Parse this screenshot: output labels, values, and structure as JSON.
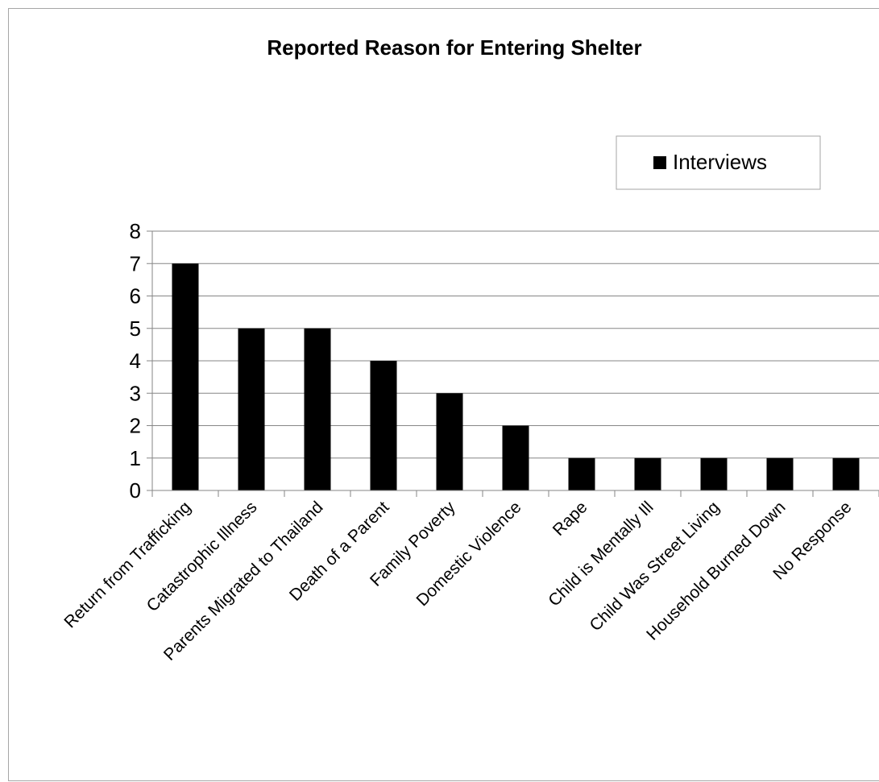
{
  "chart_data": {
    "type": "bar",
    "title": "Reported Reason for Entering Shelter",
    "xlabel": "",
    "ylabel": "",
    "categories": [
      "Return from Trafficking",
      "Catastrophic Illness",
      "Parents Migrated to Thailand",
      "Death of a Parent",
      "Family Poverty",
      "Domestic Violence",
      "Rape",
      "Child is Mentally Ill",
      "Child Was Street Living",
      "Household Burned Down",
      "No Response"
    ],
    "series": [
      {
        "name": "Interviews",
        "values": [
          7,
          5,
          5,
          4,
          3,
          2,
          1,
          1,
          1,
          1,
          1
        ],
        "color": "#000000"
      }
    ],
    "ylim": [
      0,
      8
    ],
    "yticks": [
      "0",
      "1",
      "2",
      "3",
      "4",
      "5",
      "6",
      "7",
      "8"
    ],
    "grid": true,
    "legend_position": "top-right",
    "colors": {
      "bar": "#000000",
      "gridline": "#868686",
      "frame_border": "#a6a6a6",
      "legend_border": "#a6a6a6"
    }
  }
}
